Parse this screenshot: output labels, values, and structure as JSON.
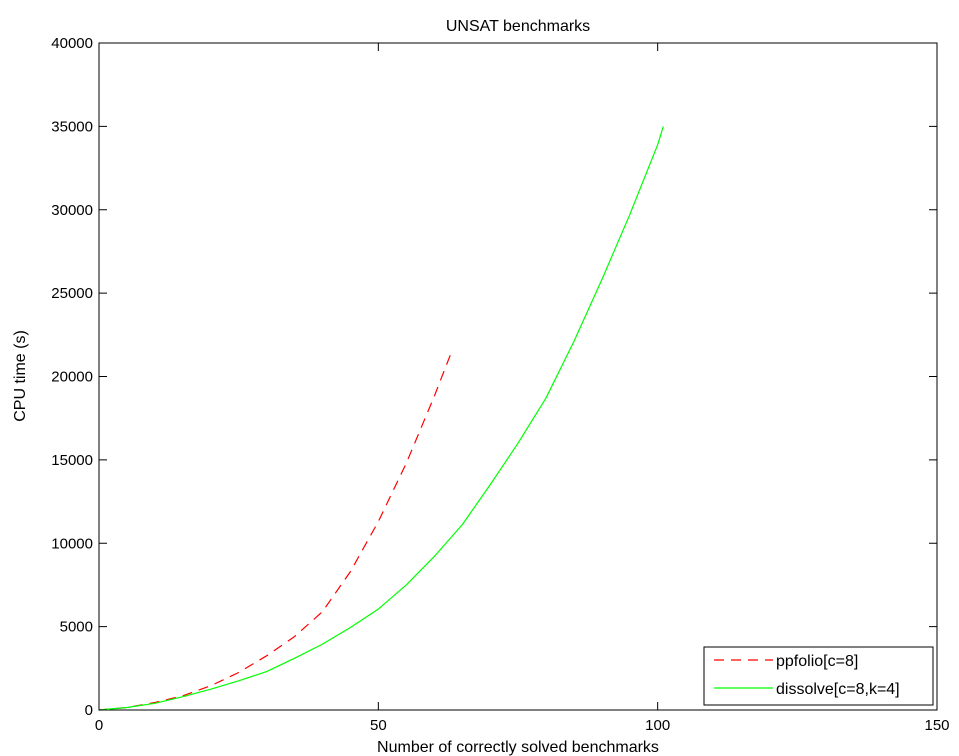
{
  "chart_data": {
    "type": "line",
    "title": "UNSAT benchmarks",
    "xlabel": "Number of correctly solved benchmarks",
    "ylabel": "CPU time (s)",
    "xlim": [
      0,
      150
    ],
    "ylim": [
      0,
      40000
    ],
    "xticks": [
      0,
      50,
      100,
      150
    ],
    "yticks": [
      0,
      5000,
      10000,
      15000,
      20000,
      25000,
      30000,
      35000,
      40000
    ],
    "grid": false,
    "legend_position": "bottom-right",
    "series": [
      {
        "name": "ppfolio[c=8]",
        "color": "#ff0000",
        "style": "dashed",
        "x": [
          0,
          5,
          10,
          15,
          20,
          25,
          30,
          35,
          40,
          45,
          50,
          55,
          60,
          63
        ],
        "y": [
          0,
          150,
          450,
          850,
          1450,
          2250,
          3250,
          4400,
          5900,
          8300,
          11300,
          14800,
          18800,
          21400
        ]
      },
      {
        "name": "dissolve[c=8,k=4]",
        "color": "#00ff00",
        "style": "solid",
        "x": [
          0,
          5,
          10,
          15,
          20,
          25,
          30,
          35,
          40,
          45,
          50,
          55,
          60,
          65,
          70,
          75,
          80,
          85,
          90,
          95,
          100,
          101
        ],
        "y": [
          0,
          150,
          400,
          800,
          1250,
          1750,
          2300,
          3100,
          3950,
          4950,
          6050,
          7500,
          9200,
          11100,
          13500,
          16000,
          18700,
          22100,
          25800,
          29700,
          33900,
          35000
        ]
      }
    ]
  }
}
